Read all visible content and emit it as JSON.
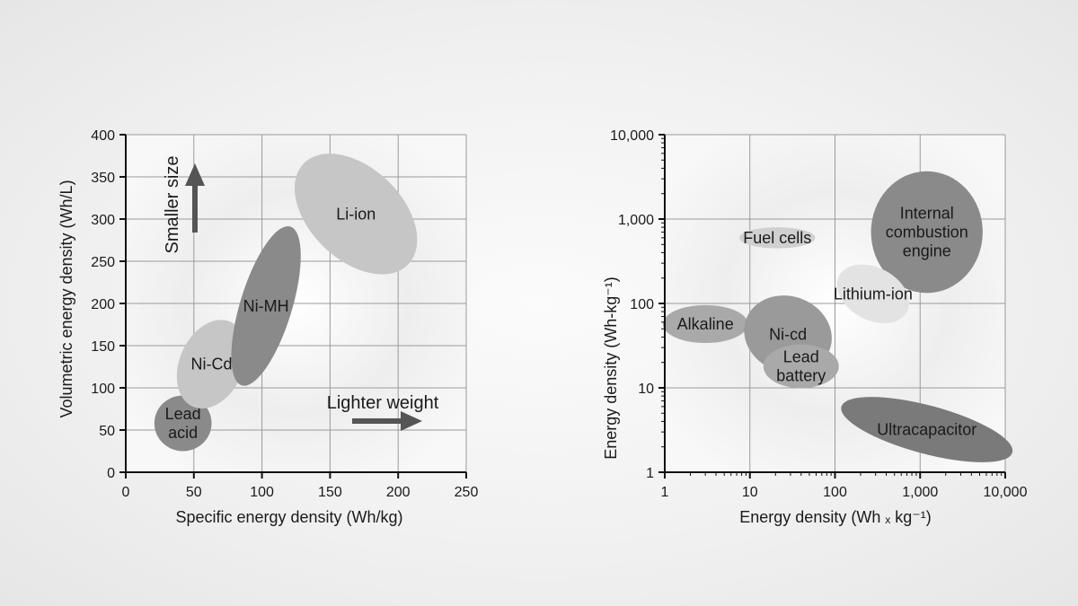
{
  "chart_data": [
    {
      "type": "scatter",
      "xlabel": "Specific energy density (Wh/kg)",
      "ylabel": "Volumetric energy density (Wh/L)",
      "xlim": [
        0,
        250
      ],
      "ylim": [
        0,
        400
      ],
      "x_ticks": [
        "0",
        "50",
        "100",
        "150",
        "200",
        "250"
      ],
      "y_ticks": [
        "0",
        "50",
        "100",
        "150",
        "200",
        "250",
        "300",
        "350",
        "400"
      ],
      "grid": true,
      "regions": [
        {
          "name": "Lead acid",
          "lines": [
            "Lead",
            "acid"
          ],
          "x_range": [
            21,
            63
          ],
          "y_range": [
            25,
            91
          ],
          "center": [
            42,
            58
          ],
          "angle": 0,
          "color": "#8a8a8a"
        },
        {
          "name": "Ni-Cd",
          "lines": [
            "Ni-Cd"
          ],
          "x_range": [
            38,
            89
          ],
          "y_range": [
            77,
            182
          ],
          "center": [
            63,
            128
          ],
          "angle": -66,
          "color": "#c6c6c6"
        },
        {
          "name": "Ni-MH",
          "lines": [
            "Ni-MH"
          ],
          "x_range": [
            79,
            130
          ],
          "y_range": [
            103,
            292
          ],
          "center": [
            103,
            197
          ],
          "angle": -73,
          "color": "#8a8a8a"
        },
        {
          "name": "Li-ion",
          "lines": [
            "Li-ion"
          ],
          "x_range": [
            124,
            214
          ],
          "y_range": [
            234,
            377
          ],
          "center": [
            169,
            306
          ],
          "angle": -46,
          "color": "#c6c6c6"
        }
      ],
      "annotations": [
        {
          "text": "Smaller size",
          "direction": "up"
        },
        {
          "text": "Lighter weight",
          "direction": "right"
        }
      ]
    },
    {
      "type": "scatter",
      "scale": "log",
      "xlabel": "Energy density (Wh ₓ kg⁻¹)",
      "ylabel": "Energy density (Wh-kg⁻¹)",
      "xlim": [
        1,
        10000
      ],
      "ylim": [
        1,
        10000
      ],
      "x_ticks": [
        "1",
        "10",
        "100",
        "1,000",
        "10,000"
      ],
      "y_ticks": [
        "1",
        "10",
        "100",
        "1,000",
        "10,000"
      ],
      "grid": true,
      "regions": [
        {
          "name": "Fuel cells",
          "lines": [
            "Fuel cells"
          ],
          "center": [
            21,
            600
          ],
          "x_range": [
            9,
            70
          ],
          "y_range": [
            450,
            800
          ],
          "angle": 0,
          "color": "#d0d0d0"
        },
        {
          "name": "Internal combustion engine",
          "lines": [
            "Internal",
            "combustion",
            "engine"
          ],
          "center": [
            1200,
            700
          ],
          "x_range": [
            390,
            8000
          ],
          "y_range": [
            130,
            3600
          ],
          "angle": 0,
          "color": "#8a8a8a"
        },
        {
          "name": "Lithium-ion",
          "lines": [
            "Lithium-ion"
          ],
          "center": [
            280,
            130
          ],
          "x_range": [
            75,
            600
          ],
          "y_range": [
            55,
            230
          ],
          "angle": 28,
          "color": "#e3e3e3"
        },
        {
          "name": "Alkaline",
          "lines": [
            "Alkaline"
          ],
          "center": [
            3,
            57
          ],
          "x_range": [
            1,
            10
          ],
          "y_range": [
            32,
            90
          ],
          "angle": 0,
          "color": "#a9a9a9"
        },
        {
          "name": "Ni-cd",
          "lines": [
            "Ni-cd"
          ],
          "center": [
            28,
            43
          ],
          "x_range": [
            9,
            100
          ],
          "y_range": [
            15,
            120
          ],
          "angle": 20,
          "color": "#9a9a9a"
        },
        {
          "name": "Lead battery",
          "lines": [
            "Lead",
            "battery"
          ],
          "center": [
            40,
            18
          ],
          "x_range": [
            13,
            100
          ],
          "y_range": [
            10,
            33
          ],
          "angle": 0,
          "color": "#a9a9a9"
        },
        {
          "name": "Ultracapacitor",
          "lines": [
            "Ultracapacitor"
          ],
          "center": [
            1200,
            3.2
          ],
          "x_range": [
            100,
            12000
          ],
          "y_range": [
            1.5,
            5.6
          ],
          "angle": 15,
          "color": "#7a7a7a"
        }
      ]
    }
  ]
}
